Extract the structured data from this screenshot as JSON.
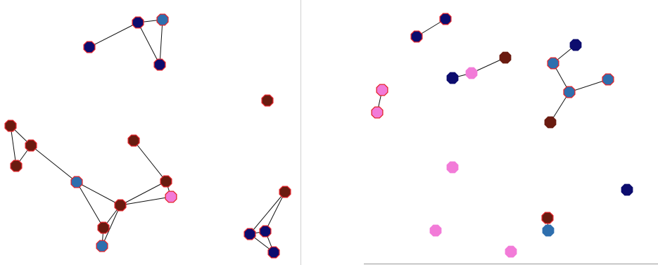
{
  "panels": [
    {
      "nodes": [
        {
          "color": "#0c0c6e",
          "outlined": true
        },
        {
          "color": "#0c0c6e",
          "outlined": true
        },
        {
          "color": "#2e6fae",
          "outlined": true
        },
        {
          "color": "#0c0c6e",
          "outlined": true
        },
        {
          "color": "#6a1b10",
          "outlined": true
        },
        {
          "color": "#6a1b10",
          "outlined": true
        },
        {
          "color": "#6a1b10",
          "outlined": true
        },
        {
          "color": "#6a1b10",
          "outlined": true
        },
        {
          "color": "#2e6fae",
          "outlined": true
        },
        {
          "color": "#6a1b10",
          "outlined": true
        },
        {
          "color": "#6a1b10",
          "outlined": true
        },
        {
          "color": "#f27bd8",
          "outlined": true
        },
        {
          "color": "#6a1b10",
          "outlined": true
        },
        {
          "color": "#6a1b10",
          "outlined": true
        },
        {
          "color": "#2e6fae",
          "outlined": true
        },
        {
          "color": "#6a1b10",
          "outlined": true
        },
        {
          "color": "#0c0c6e",
          "outlined": true
        },
        {
          "color": "#0c0c6e",
          "outlined": true
        },
        {
          "color": "#0c0c6e",
          "outlined": true
        }
      ],
      "edges": [
        [
          0,
          1
        ],
        [
          1,
          2
        ],
        [
          1,
          3
        ],
        [
          2,
          3
        ],
        [
          5,
          6
        ],
        [
          5,
          7
        ],
        [
          6,
          7
        ],
        [
          6,
          8
        ],
        [
          8,
          12
        ],
        [
          8,
          13
        ],
        [
          9,
          10
        ],
        [
          10,
          12
        ],
        [
          10,
          11
        ],
        [
          11,
          12
        ],
        [
          12,
          13
        ],
        [
          12,
          14
        ],
        [
          13,
          14
        ],
        [
          15,
          16
        ],
        [
          15,
          17
        ],
        [
          16,
          17
        ],
        [
          16,
          18
        ],
        [
          17,
          18
        ]
      ]
    },
    {
      "nodes": [
        {
          "color": "#0c0c6e",
          "outlined": true
        },
        {
          "color": "#0c0c6e",
          "outlined": true
        },
        {
          "color": "#6a1b10",
          "outlined": false
        },
        {
          "color": "#f27bd8",
          "outlined": false
        },
        {
          "color": "#0c0c6e",
          "outlined": false
        },
        {
          "color": "#f27bd8",
          "outlined": true
        },
        {
          "color": "#f27bd8",
          "outlined": true
        },
        {
          "color": "#0c0c6e",
          "outlined": false
        },
        {
          "color": "#2e6fae",
          "outlined": true
        },
        {
          "color": "#2e6fae",
          "outlined": true
        },
        {
          "color": "#2e6fae",
          "outlined": true
        },
        {
          "color": "#6a1b10",
          "outlined": false
        },
        {
          "color": "#f27bd8",
          "outlined": false
        },
        {
          "color": "#0c0c6e",
          "outlined": false
        },
        {
          "color": "#f27bd8",
          "outlined": false
        },
        {
          "color": "#6a1b10",
          "outlined": true
        },
        {
          "color": "#2e6fae",
          "outlined": false
        },
        {
          "color": "#f27bd8",
          "outlined": false
        }
      ],
      "edges": [
        [
          0,
          1
        ],
        [
          2,
          3
        ],
        [
          3,
          4
        ],
        [
          5,
          6
        ],
        [
          7,
          8
        ],
        [
          8,
          10
        ],
        [
          9,
          10
        ],
        [
          10,
          11
        ],
        [
          15,
          16
        ]
      ]
    }
  ]
}
